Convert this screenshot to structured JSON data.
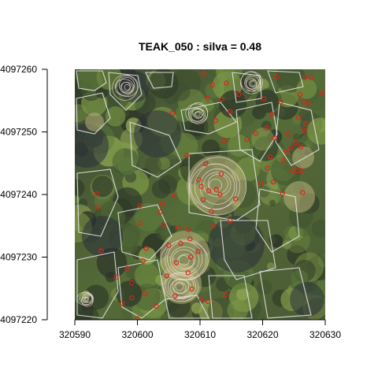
{
  "chart_data": {
    "type": "scatter",
    "title": "TEAK_050 : silva = 0.48",
    "xlabel": "",
    "ylabel": "",
    "xlim": [
      320590,
      320630
    ],
    "ylim": [
      4097220,
      4097260
    ],
    "x_ticks": [
      320590,
      320600,
      320610,
      320620,
      320630
    ],
    "y_ticks": [
      4097220,
      4097230,
      4097240,
      4097250,
      4097260
    ],
    "x_tick_labels": [
      "320590",
      "320600",
      "320610",
      "320620",
      "320630"
    ],
    "y_tick_labels": [
      "4097220",
      "4097230",
      "4097240",
      "4097250",
      "4097260"
    ],
    "grid": false,
    "background": "aerial RGB orthophoto of forest canopy",
    "overlays": [
      {
        "kind": "segmentation polygons",
        "color": "#e6e6e6"
      },
      {
        "kind": "lidar contour outlines",
        "color": "#f2dede"
      },
      {
        "kind": "tree location points",
        "marker": "open circle",
        "color": "#e0221a"
      }
    ],
    "points": [
      [
        320610.6,
        4097259.3
      ],
      [
        320622.2,
        4097258.8
      ],
      [
        320626.8,
        4097258.7
      ],
      [
        320627.7,
        4097258.7
      ],
      [
        320612.0,
        4097257.5
      ],
      [
        320614.2,
        4097257.8
      ],
      [
        320629.5,
        4097256.2
      ],
      [
        320626.0,
        4097256.0
      ],
      [
        320616.2,
        4097256.0
      ],
      [
        320611.2,
        4097255.4
      ],
      [
        320613.5,
        4097255.2
      ],
      [
        320620.2,
        4097255.3
      ],
      [
        320622.9,
        4097254.8
      ],
      [
        320626.5,
        4097254.8
      ],
      [
        320627.3,
        4097254.5
      ],
      [
        320614.8,
        4097253.3
      ],
      [
        320605.6,
        4097253.0
      ],
      [
        320621.5,
        4097252.8
      ],
      [
        320625.7,
        4097252.3
      ],
      [
        320612.5,
        4097251.8
      ],
      [
        320626.9,
        4097251.3
      ],
      [
        320620.7,
        4097250.6
      ],
      [
        320626.7,
        4097250.2
      ],
      [
        320624.1,
        4097249.7
      ],
      [
        320618.9,
        4097249.8
      ],
      [
        320621.9,
        4097249.0
      ],
      [
        320617.5,
        4097248.8
      ],
      [
        320613.9,
        4097248.6
      ],
      [
        320625.3,
        4097248.3
      ],
      [
        320626.1,
        4097247.6
      ],
      [
        320624.5,
        4097247.5
      ],
      [
        320623.8,
        4097246.8
      ],
      [
        320607.9,
        4097246.3
      ],
      [
        320621.2,
        4097246.0
      ],
      [
        320623.3,
        4097245.4
      ],
      [
        320610.9,
        4097244.9
      ],
      [
        320620.8,
        4097244.2
      ],
      [
        320624.8,
        4097243.8
      ],
      [
        320625.6,
        4097243.8
      ],
      [
        320626.2,
        4097243.8
      ],
      [
        320613.4,
        4097243.3
      ],
      [
        320609.8,
        4097242.4
      ],
      [
        320621.7,
        4097242.0
      ],
      [
        320619.7,
        4097241.8
      ],
      [
        320610.2,
        4097241.3
      ],
      [
        320612.6,
        4097240.8
      ],
      [
        320611.4,
        4097240.6
      ],
      [
        320626.4,
        4097240.3
      ],
      [
        320613.2,
        4097240.0
      ],
      [
        320593.5,
        4097240.1
      ],
      [
        320615.7,
        4097239.3
      ],
      [
        320605.8,
        4097239.8
      ],
      [
        320623.2,
        4097240.2
      ],
      [
        320610.5,
        4097239.2
      ],
      [
        320604.0,
        4097238.5
      ],
      [
        320600.4,
        4097238.2
      ],
      [
        320603.6,
        4097237.2
      ],
      [
        320593.7,
        4097238.0
      ],
      [
        320611.8,
        4097237.3
      ],
      [
        320614.8,
        4097235.8
      ],
      [
        320612.1,
        4097235.0
      ],
      [
        320600.4,
        4097235.4
      ],
      [
        320606.5,
        4097234.7
      ],
      [
        320608.1,
        4097234.4
      ],
      [
        320608.4,
        4097232.9
      ],
      [
        320606.9,
        4097232.2
      ],
      [
        320609.7,
        4097230.9
      ],
      [
        320608.5,
        4097230.0
      ],
      [
        320594.2,
        4097231.0
      ],
      [
        320606.2,
        4097229.1
      ],
      [
        320600.9,
        4097229.4
      ],
      [
        320598.4,
        4097228.2
      ],
      [
        320608.1,
        4097227.5
      ],
      [
        320604.7,
        4097227.0
      ],
      [
        320596.6,
        4097226.8
      ],
      [
        320599.1,
        4097225.9
      ],
      [
        320608.7,
        4097224.9
      ],
      [
        320601.2,
        4097224.2
      ],
      [
        320606.0,
        4097223.8
      ],
      [
        320599.1,
        4097223.5
      ],
      [
        320610.2,
        4097223.3
      ],
      [
        320611.3,
        4097222.9
      ],
      [
        320597.6,
        4097222.6
      ],
      [
        320603.0,
        4097222.2
      ],
      [
        320600.0,
        4097220.2
      ],
      [
        320614.1,
        4097224.0
      ],
      [
        320601.4,
        4097231.4
      ],
      [
        320605.0,
        4097231.9
      ],
      [
        320604.2,
        4097235.1
      ]
    ]
  }
}
